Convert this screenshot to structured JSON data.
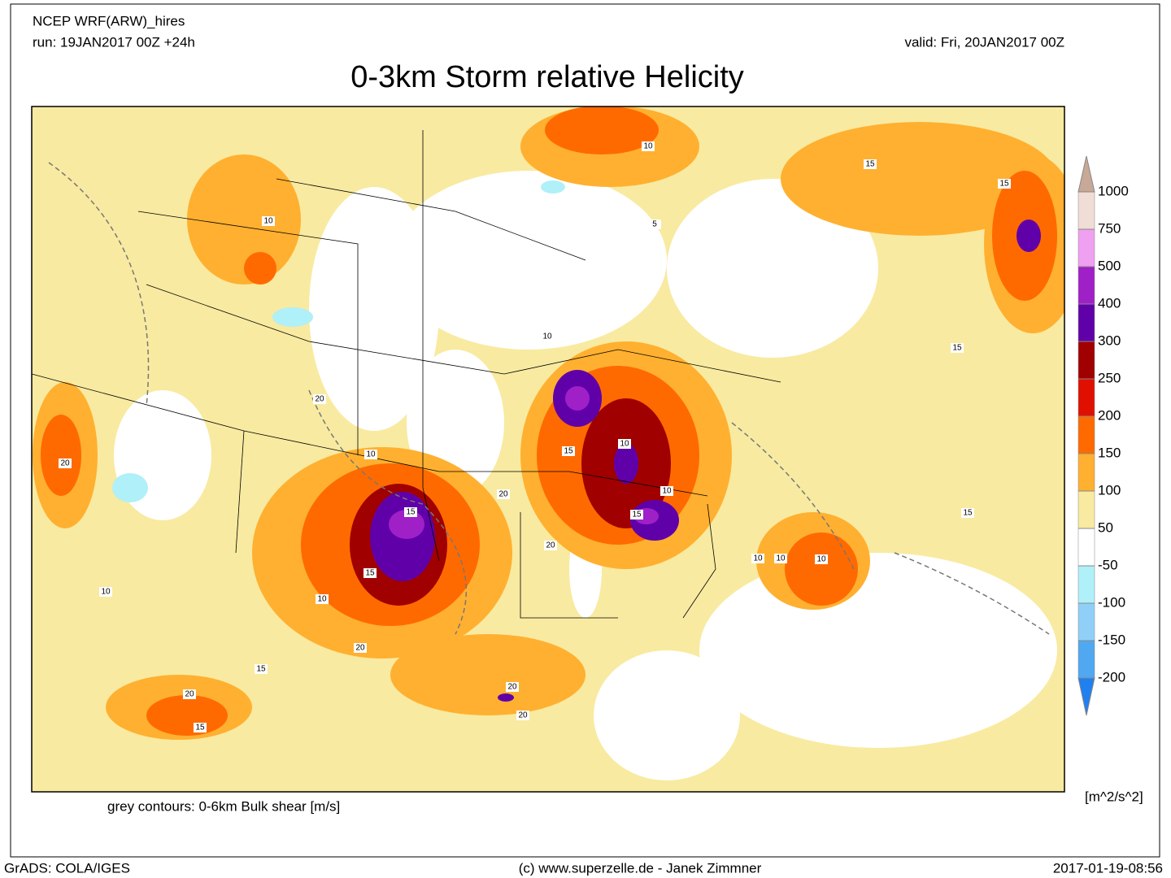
{
  "header": {
    "model": "NCEP WRF(ARW)_hires",
    "run": "run: 19JAN2017 00Z +24h",
    "valid": "valid: Fri, 20JAN2017 00Z",
    "title": "0-3km Storm relative Helicity"
  },
  "colorbar": {
    "levels": [
      1000,
      750,
      500,
      400,
      300,
      250,
      200,
      150,
      100,
      50,
      -50,
      -100,
      -150,
      -200
    ],
    "colors": [
      "#c8a896",
      "#f0ddd5",
      "#f0a0f0",
      "#a020c8",
      "#6000a8",
      "#a00000",
      "#e01000",
      "#ff6a00",
      "#ffb030",
      "#f8eaa0",
      "#ffffff",
      "#b0f0f8",
      "#90d0f8",
      "#50a8f0",
      "#2080f0"
    ],
    "unit": "[m^2/s^2]"
  },
  "contour_note": "grey contours: 0-6km Bulk shear [m/s]",
  "contour_labels": [
    20,
    15,
    15,
    10,
    10,
    15,
    10,
    10,
    15,
    15,
    10,
    20,
    15,
    10,
    10,
    20,
    20,
    20,
    15,
    20,
    10,
    10,
    15,
    10,
    5,
    10,
    20,
    15,
    15,
    20
  ],
  "footer": {
    "left": "GrADS: COLA/IGES",
    "center": "(c) www.superzelle.de - Janek Zimmner",
    "right": "2017-01-19-08:56"
  }
}
